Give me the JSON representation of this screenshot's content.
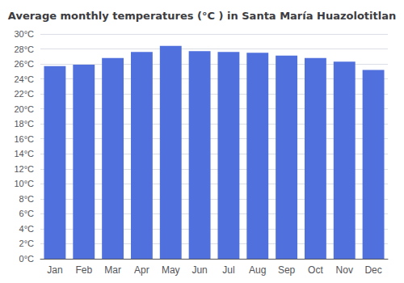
{
  "chart_data": {
    "type": "bar",
    "title": "Average monthly temperatures (°C ) in Santa María Huazolotitlan",
    "categories": [
      "Jan",
      "Feb",
      "Mar",
      "Apr",
      "May",
      "Jun",
      "Jul",
      "Aug",
      "Sep",
      "Oct",
      "Nov",
      "Dec"
    ],
    "values": [
      25.7,
      25.9,
      26.8,
      27.6,
      28.4,
      27.7,
      27.6,
      27.5,
      27.1,
      26.8,
      26.3,
      25.2
    ],
    "ylim": [
      0,
      30
    ],
    "yticks": [
      {
        "value": 0,
        "label": "0°C"
      },
      {
        "value": 2,
        "label": "2°C"
      },
      {
        "value": 4,
        "label": "4°C"
      },
      {
        "value": 6,
        "label": "6°C"
      },
      {
        "value": 8,
        "label": "8°C"
      },
      {
        "value": 10,
        "label": "10°C"
      },
      {
        "value": 12,
        "label": "12°C"
      },
      {
        "value": 14,
        "label": "14°C"
      },
      {
        "value": 16,
        "label": "16°C"
      },
      {
        "value": 18,
        "label": "18°C"
      },
      {
        "value": 20,
        "label": "20°C"
      },
      {
        "value": 22,
        "label": "22°C"
      },
      {
        "value": 24,
        "label": "24°C"
      },
      {
        "value": 26,
        "label": "26°C"
      },
      {
        "value": 28,
        "label": "28°C"
      },
      {
        "value": 30,
        "label": "30°C"
      }
    ],
    "grid": true
  }
}
